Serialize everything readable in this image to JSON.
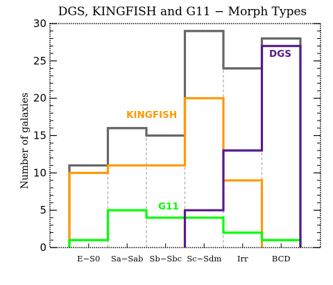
{
  "chart_data": {
    "type": "step-histogram",
    "title": "DGS, KINGFISH and G11 − Morph Types",
    "ylabel": "Number of galaxies",
    "xlabel": "",
    "ylim": [
      0,
      30
    ],
    "yticks": [
      0,
      5,
      10,
      15,
      20,
      25,
      30
    ],
    "categories": [
      "E−S0",
      "Sa−Sab",
      "Sb−Sbc",
      "Sc−Sdm",
      "Irr",
      "BCD"
    ],
    "series": [
      {
        "name": "",
        "color": "#666666",
        "values": [
          11,
          16,
          15,
          29,
          24,
          28
        ]
      },
      {
        "name": "KINGFISH",
        "color": "#ff9900",
        "values": [
          10,
          11,
          11,
          20,
          9,
          0
        ]
      },
      {
        "name": "G11",
        "color": "#00ff00",
        "values": [
          1,
          5,
          4,
          4,
          2,
          1
        ]
      },
      {
        "name": "DGS",
        "color": "#551a8b",
        "values": [
          0,
          0,
          0,
          5,
          13,
          27
        ]
      }
    ],
    "labels": {
      "dgs": "DGS",
      "kingfish": "KINGFISH",
      "g11": "G11"
    },
    "grid": "dashed vertical separators between categories"
  }
}
